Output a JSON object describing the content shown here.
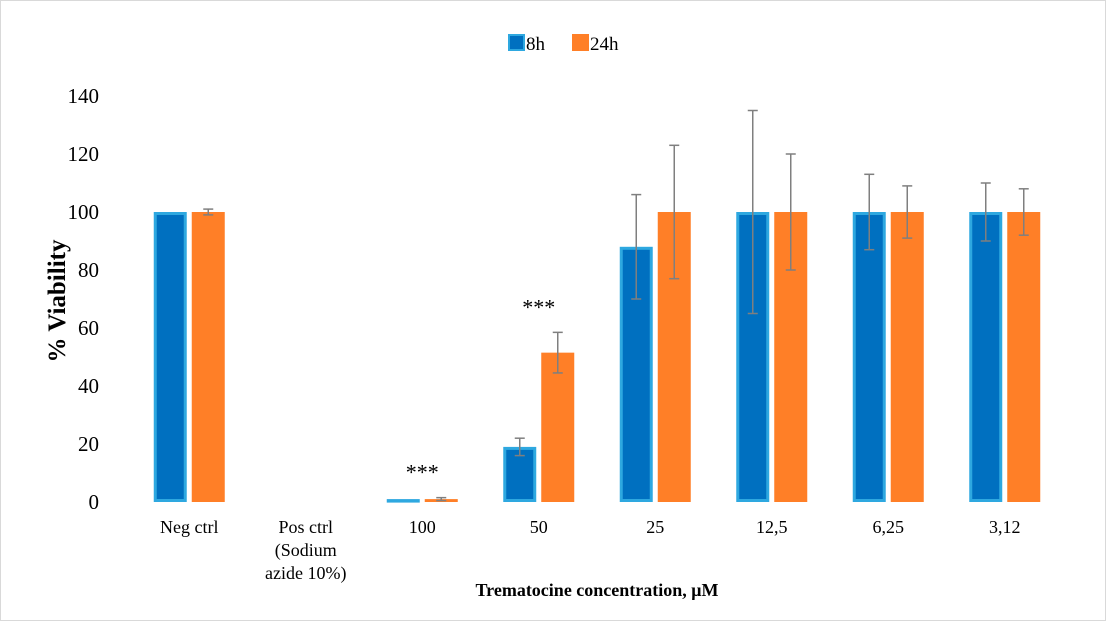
{
  "chart_data": {
    "type": "bar",
    "title": "",
    "xlabel": "Trematocine concentration, μM",
    "ylabel": "% Viability",
    "ylim": [
      0,
      140
    ],
    "y_ticks": [
      0,
      20,
      40,
      60,
      80,
      100,
      120,
      140
    ],
    "grid": false,
    "legend_position": "top-center",
    "categories": [
      [
        "Neg ctrl"
      ],
      [
        "Pos ctrl",
        "(Sodium",
        "azide 10%)"
      ],
      [
        "100"
      ],
      [
        "50"
      ],
      [
        "25"
      ],
      [
        "12,5"
      ],
      [
        "6,25"
      ],
      [
        "3,12"
      ]
    ],
    "series": [
      {
        "name": "8h",
        "color": "#0070c0",
        "border_color": "#2ea8e0",
        "values": [
          100,
          0,
          1,
          19,
          88,
          100,
          100,
          100
        ],
        "error": [
          0,
          0,
          0,
          3,
          18,
          35,
          13,
          10
        ]
      },
      {
        "name": "24h",
        "color": "#ff7f27",
        "border_color": "#ff7f27",
        "values": [
          100,
          0,
          1,
          51.5,
          100,
          100,
          100,
          100
        ],
        "error": [
          1,
          0,
          0.5,
          7,
          23,
          20,
          9,
          8
        ]
      }
    ],
    "annotations": [
      {
        "text": "***",
        "category_index": 2
      },
      {
        "text": "***",
        "category_index": 3
      }
    ]
  }
}
